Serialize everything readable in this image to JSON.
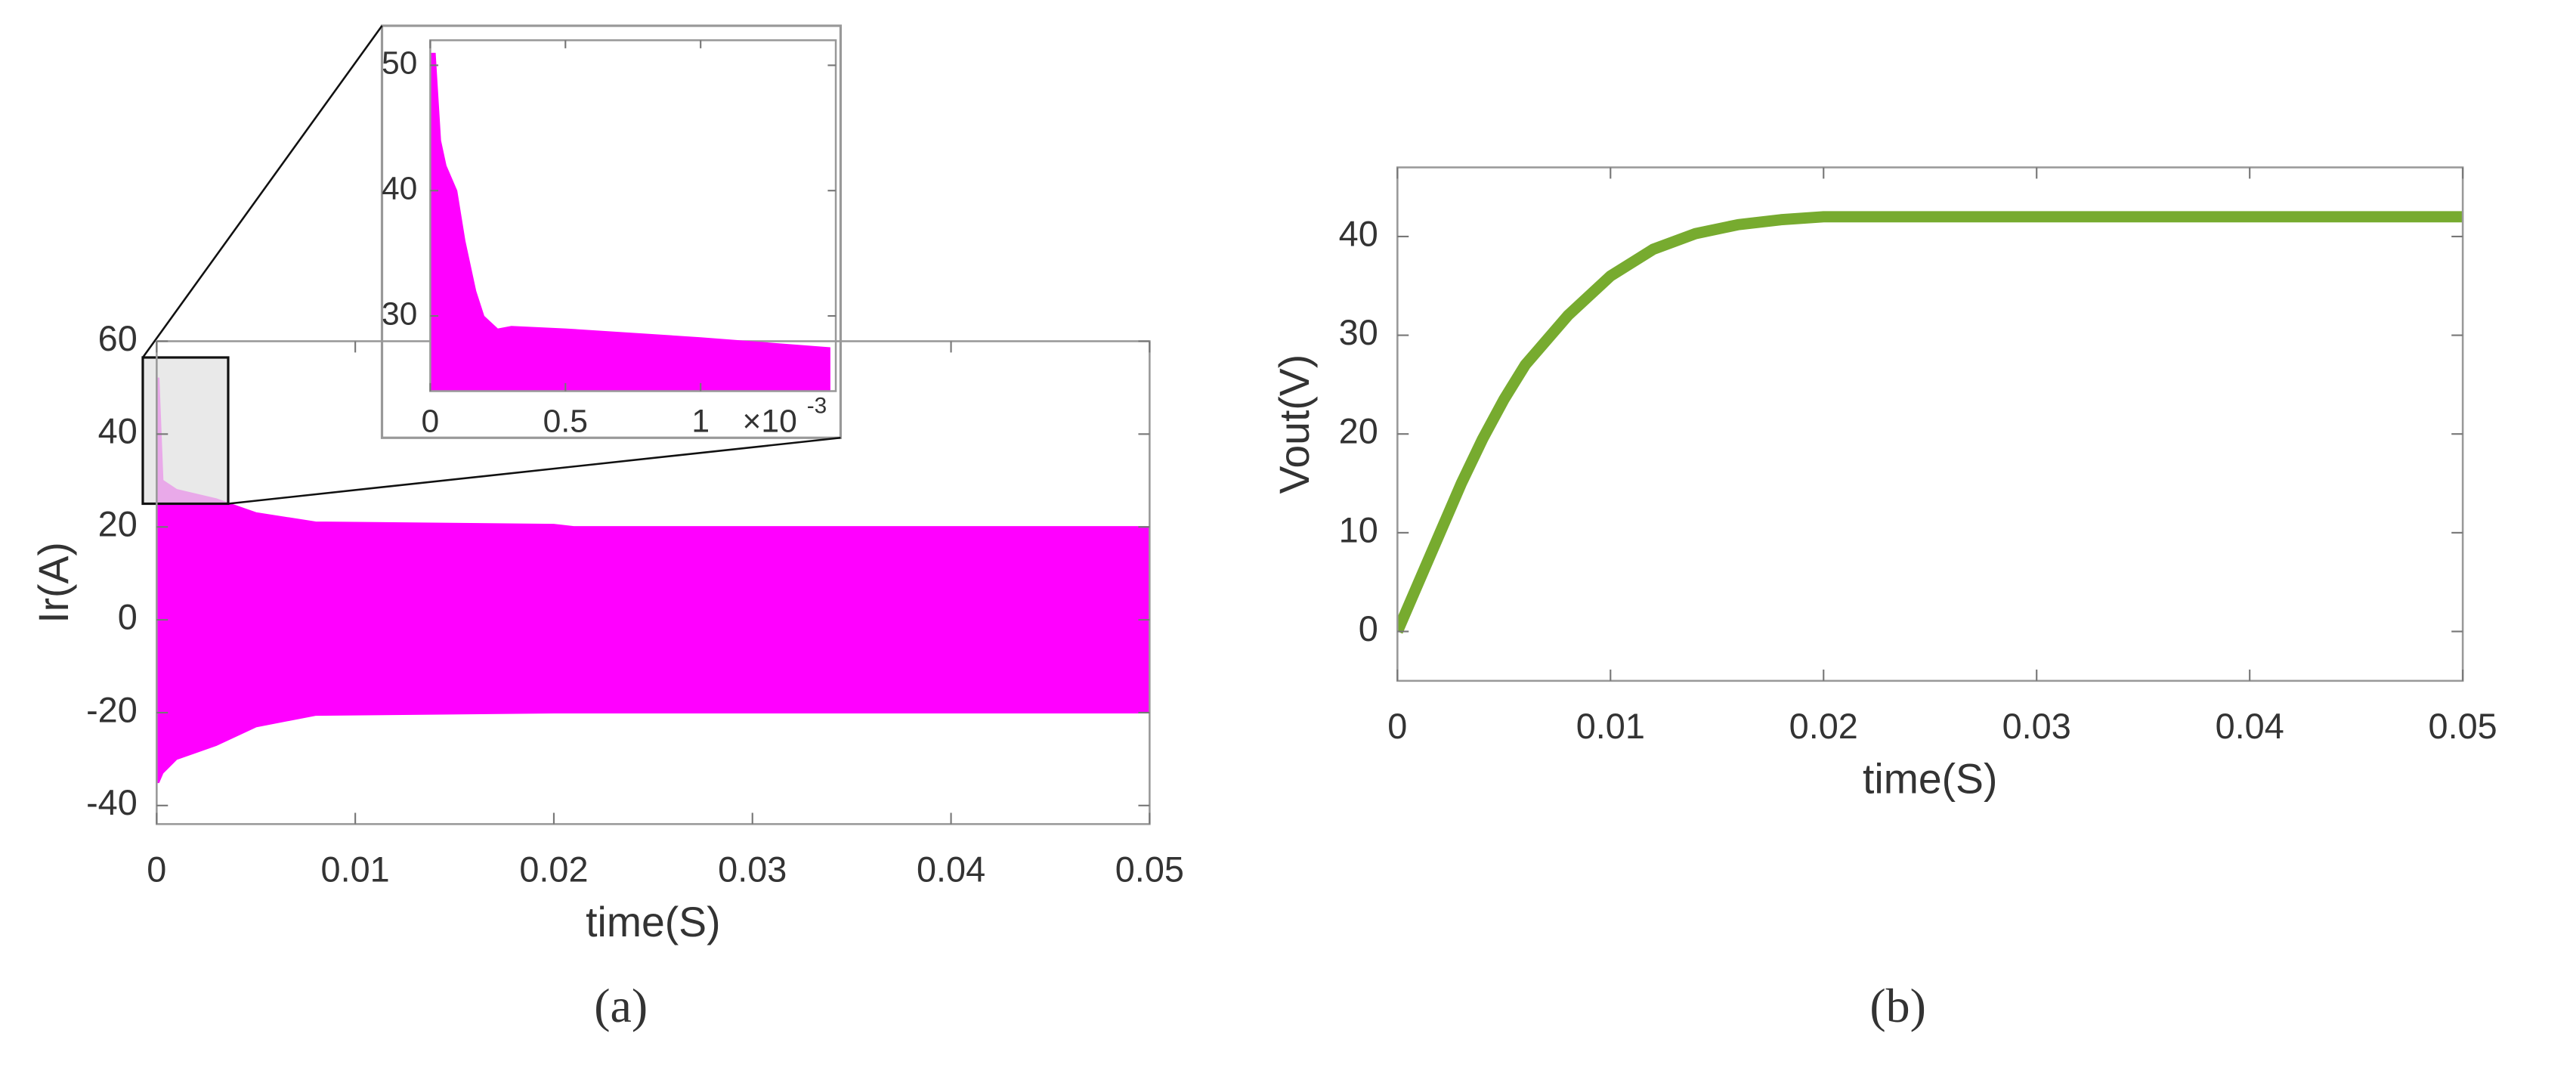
{
  "chart_data": [
    {
      "type": "band",
      "caption": "(a)",
      "xlabel": "time(S)",
      "ylabel": "Ir(A)",
      "x": [
        0,
        0.0001,
        0.0003,
        0.001,
        0.003,
        0.005,
        0.008,
        0.02,
        0.021,
        0.05
      ],
      "series": [
        {
          "color": "#ff00ff",
          "values": [
            52,
            52,
            30,
            28,
            26,
            23,
            21,
            20.5,
            20,
            20
          ]
        },
        {
          "color": "#ff00ff",
          "values": [
            -35,
            -35,
            -33,
            -30,
            -27,
            -23,
            -20.5,
            -20,
            -20,
            -20
          ]
        }
      ],
      "xlim": [
        0,
        0.05
      ],
      "ylim": [
        -44,
        60
      ],
      "xticks": [
        0,
        0.01,
        0.02,
        0.03,
        0.04,
        0.05
      ],
      "yticks": [
        -40,
        -20,
        0,
        20,
        40,
        60
      ],
      "zoom_box": {
        "xlim": [
          -0.0007,
          0.0036
        ],
        "ylim": [
          25,
          56.5
        ]
      }
    },
    {
      "type": "area",
      "color": "#ff00ff",
      "x": [
        0,
        0.02,
        0.04,
        0.06,
        0.1,
        0.13,
        0.17,
        0.2,
        0.25,
        0.3,
        0.5,
        1.0,
        1.48
      ],
      "values": [
        51,
        51,
        44,
        42,
        40,
        36,
        32,
        30,
        29,
        29.2,
        29,
        28.3,
        27.5
      ],
      "xlim": [
        0,
        1.5
      ],
      "ylim": [
        24,
        52
      ],
      "xticks": [
        0,
        0.5,
        1
      ],
      "yticks": [
        30,
        40,
        50
      ],
      "x_multiplier": "×10",
      "x_exponent": "-3"
    },
    {
      "type": "line",
      "caption": "(b)",
      "xlabel": "time(S)",
      "ylabel": "Vout(V)",
      "color": "#77ab2f",
      "x": [
        0,
        0.001,
        0.002,
        0.003,
        0.004,
        0.005,
        0.006,
        0.008,
        0.01,
        0.012,
        0.014,
        0.016,
        0.018,
        0.02,
        0.05
      ],
      "values": [
        0,
        5,
        10,
        15,
        19.5,
        23.5,
        27,
        32,
        36,
        38.7,
        40.3,
        41.2,
        41.7,
        42,
        42
      ],
      "xlim": [
        0,
        0.05
      ],
      "ylim": [
        -5,
        47
      ],
      "xticks": [
        0,
        0.01,
        0.02,
        0.03,
        0.04,
        0.05
      ],
      "yticks": [
        0,
        10,
        20,
        30,
        40
      ]
    }
  ]
}
